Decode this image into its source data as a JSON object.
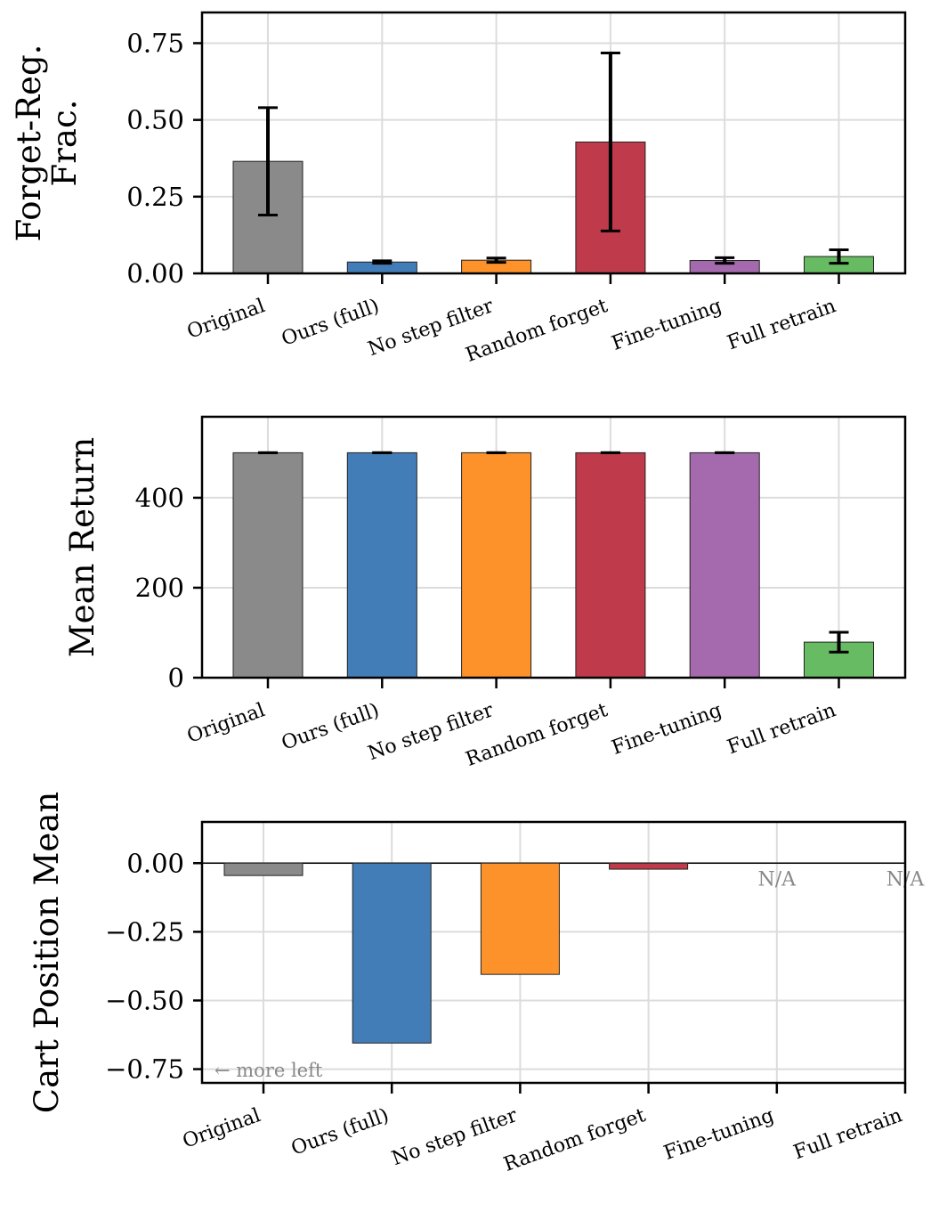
{
  "chart_data": [
    {
      "type": "bar",
      "ylabel": "Forget-Reg.\nFrac.",
      "categories": [
        "Original",
        "Ours (full)",
        "No step filter",
        "Random forget",
        "Fine-tuning",
        "Full retrain"
      ],
      "values": [
        0.365,
        0.037,
        0.043,
        0.428,
        0.042,
        0.055
      ],
      "errors": [
        0.175,
        0.004,
        0.007,
        0.29,
        0.009,
        0.022
      ],
      "ylim": [
        0,
        0.85
      ],
      "yticks": [
        0,
        0.25,
        0.5,
        0.75
      ],
      "ytick_labels": [
        "0.00",
        "0.25",
        "0.50",
        "0.75"
      ],
      "grid": true
    },
    {
      "type": "bar",
      "ylabel": "Mean Return",
      "categories": [
        "Original",
        "Ours (full)",
        "No step filter",
        "Random forget",
        "Fine-tuning",
        "Full retrain"
      ],
      "values": [
        500,
        500,
        500,
        500,
        500,
        79
      ],
      "errors": [
        0,
        0,
        0,
        0,
        0,
        22
      ],
      "ylim": [
        0,
        580
      ],
      "yticks": [
        0,
        200,
        400
      ],
      "ytick_labels": [
        "0",
        "200",
        "400"
      ],
      "grid": true
    },
    {
      "type": "bar",
      "ylabel": "Cart Position Mean",
      "categories": [
        "Original",
        "Ours (full)",
        "No step filter",
        "Random forget",
        "Fine-tuning",
        "Full retrain"
      ],
      "values": [
        -0.045,
        -0.655,
        -0.405,
        -0.022,
        null,
        null
      ],
      "missing_label": "N/A",
      "annotation": "← more left",
      "ylim": [
        -0.8,
        0.15
      ],
      "yticks": [
        -0.75,
        -0.5,
        -0.25,
        0
      ],
      "ytick_labels": [
        "−0.75",
        "−0.50",
        "−0.25",
        "0.00"
      ],
      "zero_line": true,
      "grid": true
    }
  ],
  "colors": {
    "Original": "#8a8a8a",
    "Ours (full)": "#437db7",
    "No step filter": "#fd922b",
    "Random forget": "#bf3a4b",
    "Fine-tuning": "#a569ad",
    "Full retrain": "#67bb62"
  }
}
